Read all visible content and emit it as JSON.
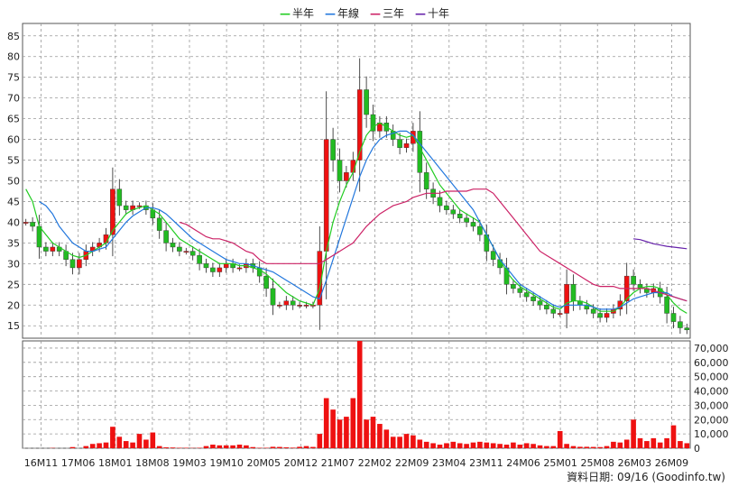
{
  "legend": [
    {
      "name": "半年",
      "color": "#22cc22"
    },
    {
      "name": "年線",
      "color": "#2277dd"
    },
    {
      "name": "三年",
      "color": "#cc2266"
    },
    {
      "name": "十年",
      "color": "#6622aa"
    }
  ],
  "source": "資料日期: 09/16 (Goodinfo.tw)",
  "colors": {
    "up": "#ee1111",
    "down": "#22bb22",
    "volume": "#ee1111",
    "grid": "#999999"
  },
  "chart_data": {
    "type": "candlestick",
    "price_ylim": [
      12,
      88
    ],
    "price_ticks": [
      15,
      20,
      25,
      30,
      35,
      40,
      45,
      50,
      55,
      60,
      65,
      70,
      75,
      80,
      85
    ],
    "volume_ylim": [
      0,
      75000
    ],
    "volume_ticks": [
      0,
      10000,
      20000,
      30000,
      40000,
      50000,
      60000,
      70000
    ],
    "volume_tick_labels": [
      "0",
      "10,000",
      "20,000",
      "30,000",
      "40,000",
      "50,000",
      "60,000",
      "70,000"
    ],
    "x_tick_labels": [
      "16M11",
      "17M06",
      "18M01",
      "18M08",
      "19M03",
      "19M10",
      "20M05",
      "20M12",
      "21M07",
      "22M02",
      "22M09",
      "23M04",
      "23M11",
      "24M06",
      "25M01",
      "25M08",
      "26M03",
      "26M09"
    ],
    "close": [
      40,
      39,
      34,
      33,
      34,
      33,
      31,
      29,
      31,
      33,
      34,
      35,
      37,
      48,
      44,
      43,
      44,
      44,
      43,
      41,
      38,
      35,
      34,
      33,
      33,
      32,
      30,
      29,
      28,
      29,
      30,
      29,
      29,
      30,
      29,
      27,
      24,
      20,
      20,
      21,
      20,
      20,
      20,
      20,
      33,
      60,
      55,
      50,
      52,
      55,
      72,
      66,
      62,
      64,
      62,
      60,
      58,
      59,
      62,
      52,
      48,
      46,
      44,
      43,
      42,
      41,
      40,
      39,
      37,
      33,
      31,
      29,
      25,
      24,
      23,
      22,
      21,
      20,
      19,
      18,
      18,
      25,
      21,
      20,
      19,
      18,
      17,
      18,
      19,
      21,
      27,
      25,
      24,
      23,
      24,
      22,
      18,
      16,
      14.5,
      14
    ],
    "half_year": [
      48,
      45,
      39,
      37,
      35,
      34,
      33,
      32,
      31.5,
      32,
      33,
      34,
      35,
      38,
      40,
      42,
      43,
      43.5,
      44,
      43,
      42,
      40,
      38,
      36,
      35,
      34,
      33,
      32,
      31,
      30,
      30,
      30,
      29.5,
      29.5,
      29,
      28.5,
      27.5,
      26,
      24.5,
      23,
      22,
      21,
      20.5,
      20,
      24,
      33,
      40,
      45,
      49,
      52,
      57,
      61,
      63,
      64,
      63,
      62,
      61,
      60.5,
      61,
      58,
      55,
      52,
      49,
      47,
      45,
      43,
      42,
      41,
      40,
      37,
      34,
      31,
      28,
      26,
      24.5,
      23.5,
      22.5,
      21.5,
      20.5,
      19.5,
      19,
      20.5,
      21,
      21,
      20.5,
      19.5,
      18.5,
      18.5,
      18.5,
      19.5,
      21.5,
      23,
      24,
      24.5,
      24.5,
      24,
      22.5,
      20.5,
      19,
      18
    ],
    "year_line": [
      null,
      null,
      45,
      44,
      42,
      39,
      37,
      35,
      34,
      33,
      33,
      33.5,
      34,
      36,
      38,
      40,
      41.5,
      42.5,
      43.5,
      43.5,
      43,
      42,
      40.5,
      39,
      37.5,
      36,
      35,
      34,
      33,
      32,
      31,
      30.5,
      30,
      30,
      29.5,
      29,
      28.5,
      28,
      27,
      26,
      25,
      24,
      23,
      22,
      21.5,
      26,
      31,
      36,
      41,
      46,
      51,
      55,
      58,
      60,
      61,
      61.5,
      62,
      62,
      61,
      59,
      57,
      55,
      53,
      51,
      49,
      47,
      45,
      43,
      40,
      37,
      34,
      31,
      29,
      27,
      25,
      24,
      23,
      22,
      21,
      20,
      19.5,
      20,
      20,
      20,
      20,
      19.5,
      19,
      19,
      19,
      19.5,
      20.5,
      21.5,
      22,
      22.5,
      23,
      23,
      23,
      22,
      21.5,
      21
    ],
    "three_year": [
      null,
      null,
      null,
      null,
      null,
      null,
      null,
      null,
      null,
      null,
      null,
      null,
      null,
      null,
      null,
      null,
      null,
      null,
      null,
      null,
      null,
      null,
      null,
      40,
      39.5,
      38.5,
      37.5,
      36.5,
      36,
      36,
      35.5,
      35,
      34,
      33,
      32.5,
      31,
      30,
      30,
      30,
      30,
      30,
      30,
      30,
      30,
      30,
      31,
      32,
      33,
      34,
      35,
      37,
      39,
      40.5,
      42,
      43,
      44,
      44.5,
      45,
      46,
      46.5,
      47,
      47,
      47,
      47.5,
      47.5,
      47.5,
      47.5,
      48,
      48,
      48,
      47,
      45,
      43,
      41,
      39,
      37,
      35,
      33,
      32,
      31,
      30,
      29,
      28,
      27,
      26,
      25,
      24.5,
      24.5,
      24.5,
      24,
      24,
      24,
      24,
      24,
      23.5,
      23,
      22.5,
      22,
      21.5,
      21
    ],
    "ten_year": [
      null,
      null,
      null,
      null,
      null,
      null,
      null,
      null,
      null,
      null,
      null,
      null,
      null,
      null,
      null,
      null,
      null,
      null,
      null,
      null,
      null,
      null,
      null,
      null,
      null,
      null,
      null,
      null,
      null,
      null,
      null,
      null,
      null,
      null,
      null,
      null,
      null,
      null,
      null,
      null,
      null,
      null,
      null,
      null,
      null,
      null,
      null,
      null,
      null,
      null,
      null,
      null,
      null,
      null,
      null,
      null,
      null,
      null,
      null,
      null,
      null,
      null,
      null,
      null,
      null,
      null,
      null,
      null,
      null,
      null,
      null,
      null,
      null,
      null,
      null,
      null,
      null,
      null,
      null,
      null,
      null,
      null,
      null,
      null,
      null,
      null,
      null,
      null,
      null,
      null,
      null,
      36,
      35.8,
      35.3,
      34.8,
      34.5,
      34.2,
      34,
      33.8,
      33.6
    ],
    "volume": [
      0,
      0,
      0,
      0,
      200,
      0,
      0,
      800,
      0,
      1500,
      3000,
      3500,
      4000,
      15000,
      8000,
      5000,
      4000,
      10000,
      6000,
      11000,
      1500,
      600,
      500,
      300,
      300,
      200,
      300,
      1500,
      2500,
      2000,
      2000,
      2000,
      2500,
      2000,
      800,
      300,
      300,
      1000,
      900,
      600,
      400,
      1000,
      1500,
      900,
      10000,
      35000,
      27000,
      20000,
      22000,
      35000,
      75000,
      20000,
      22000,
      17000,
      13000,
      8000,
      8000,
      10000,
      9000,
      6000,
      4500,
      3500,
      2500,
      3500,
      4500,
      3500,
      3000,
      4000,
      4500,
      4000,
      3500,
      3000,
      2500,
      4000,
      2500,
      3500,
      3000,
      2000,
      1500,
      1500,
      12000,
      3000,
      1500,
      1000,
      1000,
      900,
      800,
      1500,
      4500,
      4000,
      6000,
      20000,
      7000,
      5000,
      7000,
      4000,
      7000,
      16000,
      5000,
      3500
    ]
  }
}
